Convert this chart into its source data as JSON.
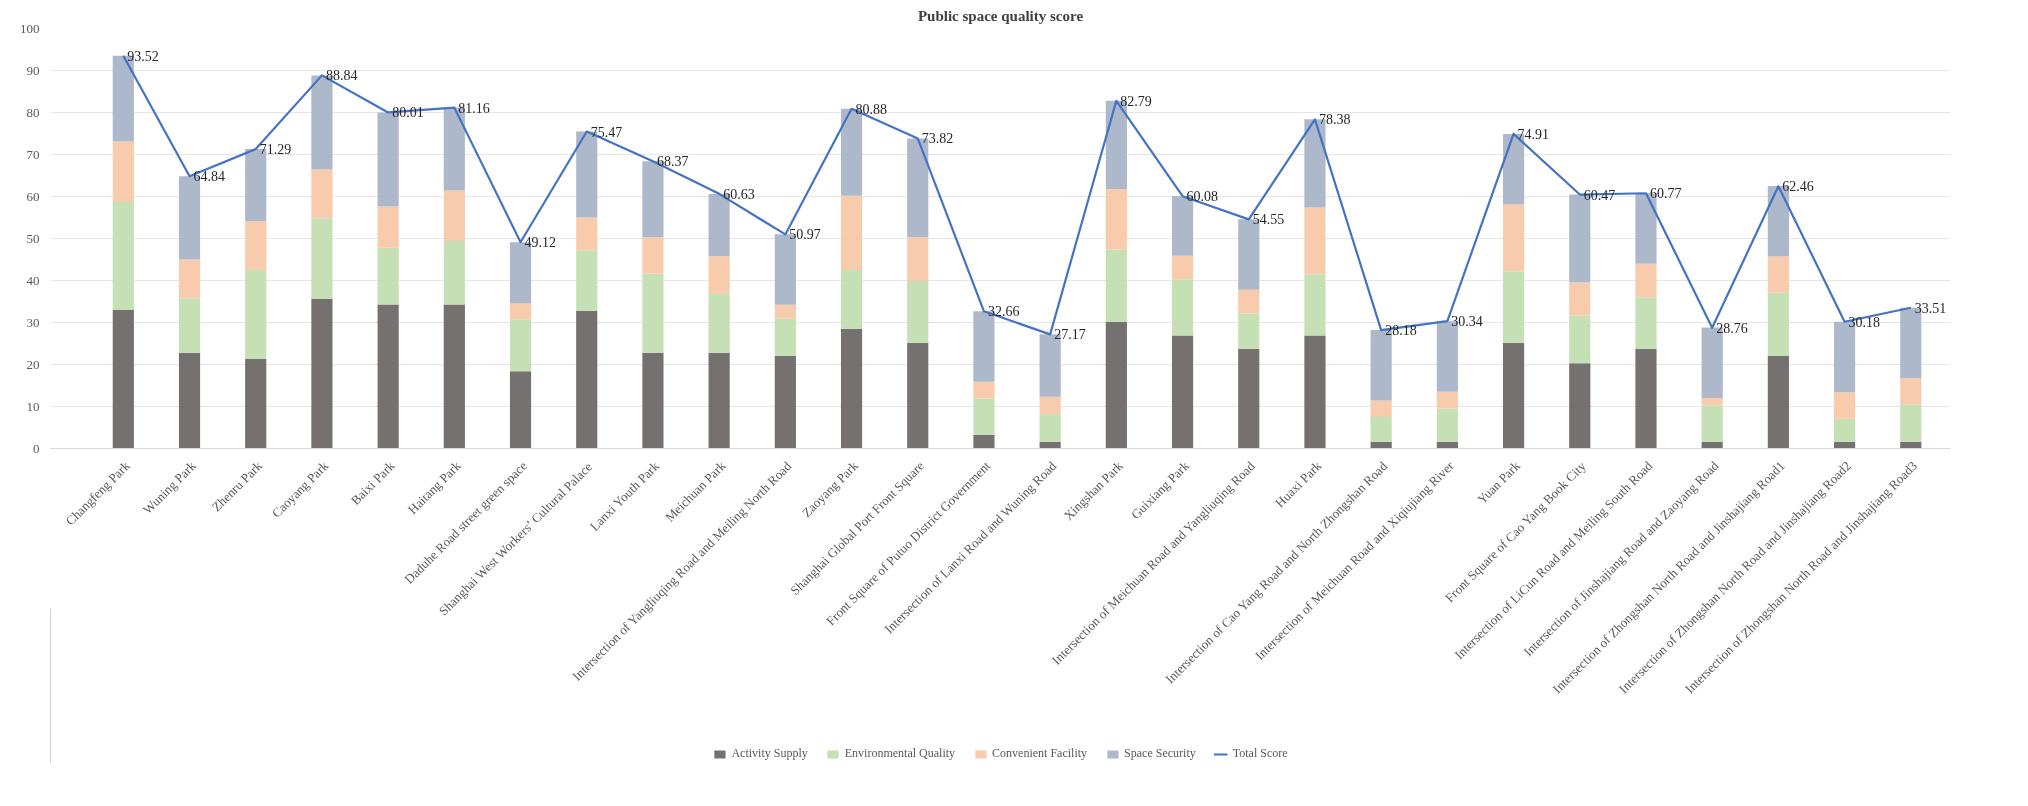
{
  "chart_data": {
    "type": "bar",
    "stacked": true,
    "title": "Public space quality score",
    "categories": [
      "Changfeng Park",
      "Wuning Park",
      "Zhenru Park",
      "Caoyang Park",
      "Baixi Park",
      "Haitang Park",
      "Daduhe Road street green space",
      "Shanghai West Workers’ Cultural Palace",
      "Lanxi Youth Park",
      "Meichuan Park",
      "Intersection of Yangliuqing Road and Meiling North Road",
      "Zaoyang Park",
      "Shanghai Global Port Front Square",
      "Front Square of Putuo District Government",
      "Intersection of Lanxi Road and Wuning Road",
      "Xingshan Park",
      "Guixiang Park",
      "Intersection of Meichuan Road and Yangliuqing Road",
      "Huaxi Park",
      "Intersection of Cao Yang Road and North Zhongshan Road",
      "Intersection of Meichuan Road and Xiqiujiang River",
      "Yuan Park",
      "Front Square of Cao Yang Book City",
      "Intersection of LiCun Road and Meiling South Road",
      "Intersection of Jinshajiang Road and Zaoyang Road",
      "Intersection of Zhongshan North Road and Jinshajiang Road1",
      "Intersection of Zhongshan North Road and Jinshajiang Road2",
      "Intersection of Zhongshan North Road and Jinshajiang Road3"
    ],
    "series": [
      {
        "name": "Activity Supply",
        "color": "#767171",
        "values": [
          33,
          22.8,
          21.3,
          35.6,
          34.3,
          34.3,
          18.4,
          32.8,
          22.8,
          22.8,
          22.1,
          28.5,
          25.2,
          3.3,
          1.6,
          30.2,
          26.9,
          23.7,
          26.9,
          1.6,
          1.6,
          25.2,
          20.3,
          23.7,
          1.6,
          22.0,
          1.6,
          1.6
        ]
      },
      {
        "name": "Environmental Quality",
        "color": "#c5e0b4",
        "values": [
          25.7,
          13.0,
          21.2,
          19.2,
          13.5,
          15.1,
          12.4,
          14.4,
          18.8,
          14.0,
          8.8,
          14.0,
          14.7,
          8.6,
          6.6,
          17.2,
          13.4,
          8.4,
          14.6,
          5.9,
          7.9,
          17.0,
          11.3,
          12.3,
          8.7,
          15.1,
          5.5,
          8.8
        ]
      },
      {
        "name": "Convenient Facility",
        "color": "#f8cbad",
        "values": [
          14.4,
          9.2,
          11.6,
          11.6,
          9.8,
          12.0,
          3.7,
          7.8,
          8.7,
          9.0,
          3.3,
          17.7,
          10.4,
          4.0,
          4.1,
          14.4,
          5.6,
          5.7,
          15.9,
          3.9,
          4.0,
          15.9,
          7.9,
          8.0,
          1.7,
          8.6,
          6.3,
          6.3
        ]
      },
      {
        "name": "Space Security",
        "color": "#adb9ca",
        "values": [
          20.4,
          19.8,
          17.2,
          22.4,
          22.4,
          19.8,
          14.6,
          20.5,
          18.1,
          14.8,
          16.8,
          20.7,
          23.5,
          16.8,
          14.9,
          21.0,
          14.2,
          16.8,
          21.0,
          16.8,
          16.8,
          16.8,
          21.0,
          16.8,
          16.8,
          16.8,
          16.8,
          16.8
        ]
      },
      {
        "name": "Total Score",
        "type": "line",
        "color": "#4472c4",
        "data_labels": true,
        "values": [
          93.52,
          64.84,
          71.29,
          88.84,
          80.01,
          81.16,
          49.12,
          75.47,
          68.37,
          60.63,
          50.97,
          80.88,
          73.82,
          32.66,
          27.17,
          82.79,
          60.08,
          54.55,
          78.38,
          28.18,
          30.34,
          74.91,
          60.47,
          60.77,
          28.76,
          62.46,
          30.18,
          33.51
        ]
      }
    ],
    "ylim": [
      0,
      100
    ],
    "yticks": [
      0,
      10,
      20,
      30,
      40,
      50,
      60,
      70,
      80,
      90,
      100
    ],
    "grid": "y",
    "legend": "bottom",
    "marker": "none",
    "line_style": "solid"
  }
}
